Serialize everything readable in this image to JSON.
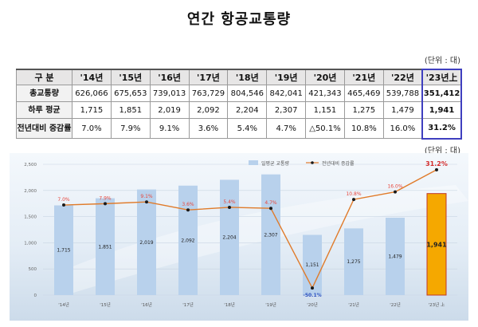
{
  "title": "연간 항공교통량",
  "table": {
    "unit": "(단위 : 대)",
    "header": [
      "구 분",
      "'14년",
      "'15년",
      "'16년",
      "'17년",
      "'18년",
      "'19년",
      "'20년",
      "'21년",
      "'22년",
      "'23년上"
    ],
    "rows": [
      {
        "label": "총교통량",
        "values": [
          "626,066",
          "675,653",
          "739,013",
          "763,729",
          "804,546",
          "842,041",
          "421,343",
          "465,469",
          "539,788",
          "351,412"
        ]
      },
      {
        "label": "하루 평균",
        "values": [
          "1,715",
          "1,851",
          "2,019",
          "2,092",
          "2,204",
          "2,307",
          "1,151",
          "1,275",
          "1,479",
          "1,941"
        ]
      },
      {
        "label": "전년대비 증감률",
        "values": [
          "7.0%",
          "7.9%",
          "9.1%",
          "3.6%",
          "5.4%",
          "4.7%",
          "△50.1%",
          "10.8%",
          "16.0%",
          "31.2%"
        ]
      }
    ]
  },
  "chart_data": {
    "type": "bar",
    "unit": "(단위 : 대)",
    "categories": [
      "'14년",
      "'15년",
      "'16년",
      "'17년",
      "'18년",
      "'19년",
      "'20년",
      "'21년",
      "'22년",
      "'23년 上"
    ],
    "series": [
      {
        "name": "일평균 교통량",
        "values": [
          1715,
          1851,
          2019,
          2092,
          2204,
          2307,
          1151,
          1275,
          1479,
          1941
        ],
        "labels": [
          "1,715",
          "1,851",
          "2,019",
          "2,092",
          "2,204",
          "2,307",
          "1,151",
          "1,275",
          "1,479",
          "1,941"
        ]
      },
      {
        "name": "전년대비 증감률",
        "type": "line",
        "values": [
          7.0,
          7.9,
          9.1,
          3.6,
          5.4,
          4.7,
          -50.1,
          10.8,
          16.0,
          31.2
        ],
        "labels": [
          "7.0%",
          "7.9%",
          "9.1%",
          "3.6%",
          "5.4%",
          "4.7%",
          "-50.1%",
          "10.8%",
          "16.0%",
          "31.2%"
        ]
      }
    ],
    "yticks": [
      "2,500",
      "2,000",
      "1,500",
      "1,000",
      "500",
      "0"
    ],
    "ylim": [
      0,
      2500
    ],
    "y2lim": [
      -55,
      35
    ],
    "legend": "top-center",
    "colors": {
      "bar": "#b8d1ec",
      "bar_highlight": "#f5a800",
      "bar_highlight_edge": "#c0392b",
      "line": "#e07b2a",
      "marker": "#1a1a1a",
      "label_pos": "#e8463c",
      "label_neg": "#2a4fbf",
      "label_highlight": "#d42b2b"
    }
  }
}
